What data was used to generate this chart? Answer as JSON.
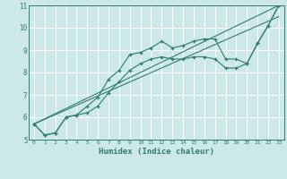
{
  "title": "",
  "xlabel": "Humidex (Indice chaleur)",
  "bg_color": "#cce8e8",
  "grid_color": "#ffffff",
  "line_color": "#2e7d6e",
  "xlim": [
    -0.5,
    23.5
  ],
  "ylim": [
    5,
    11
  ],
  "xticks": [
    0,
    1,
    2,
    3,
    4,
    5,
    6,
    7,
    8,
    9,
    10,
    11,
    12,
    13,
    14,
    15,
    16,
    17,
    18,
    19,
    20,
    21,
    22,
    23
  ],
  "yticks": [
    5,
    6,
    7,
    8,
    9,
    10,
    11
  ],
  "line1_x": [
    0,
    1,
    2,
    3,
    4,
    5,
    6,
    7,
    8,
    9,
    10,
    11,
    12,
    13,
    14,
    15,
    16,
    17,
    18,
    19,
    20,
    21,
    22,
    23
  ],
  "line1_y": [
    5.7,
    5.2,
    5.3,
    6.0,
    6.1,
    6.5,
    6.9,
    7.7,
    8.1,
    8.8,
    8.9,
    9.1,
    9.4,
    9.1,
    9.2,
    9.4,
    9.5,
    9.5,
    8.6,
    8.6,
    8.4,
    9.3,
    10.1,
    11.0
  ],
  "line2_x": [
    0,
    1,
    2,
    3,
    4,
    5,
    6,
    7,
    8,
    9,
    10,
    11,
    12,
    13,
    14,
    15,
    16,
    17,
    18,
    19,
    20,
    21,
    22,
    23
  ],
  "line2_y": [
    5.7,
    5.2,
    5.3,
    6.0,
    6.1,
    6.2,
    6.5,
    7.1,
    7.6,
    8.1,
    8.4,
    8.6,
    8.7,
    8.6,
    8.6,
    8.7,
    8.7,
    8.6,
    8.2,
    8.2,
    8.4,
    9.3,
    10.1,
    11.0
  ],
  "line3_x": [
    0,
    23
  ],
  "line3_y": [
    5.7,
    11.0
  ],
  "line4_x": [
    0,
    23
  ],
  "line4_y": [
    5.7,
    10.5
  ]
}
